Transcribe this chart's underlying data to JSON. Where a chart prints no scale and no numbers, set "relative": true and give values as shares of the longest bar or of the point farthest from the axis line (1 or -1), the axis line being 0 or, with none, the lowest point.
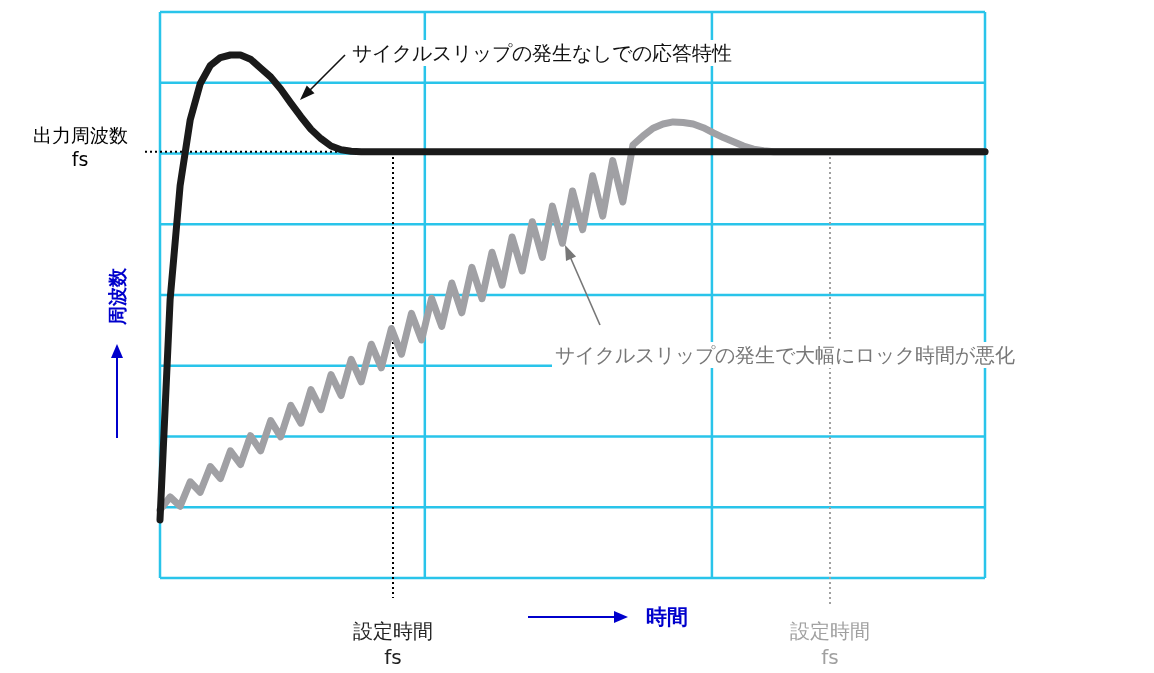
{
  "chart_data": {
    "type": "line",
    "relative": true,
    "xlabel": "時間",
    "ylabel": "周波数",
    "grid": true,
    "line_style": "solid",
    "categories": [
      null,
      null,
      null,
      null,
      null,
      null,
      null,
      null,
      null,
      null,
      null,
      null,
      null,
      null,
      null,
      null,
      null,
      null,
      null,
      null,
      null,
      null,
      null,
      null,
      null,
      null,
      null,
      null,
      null,
      null,
      null,
      null,
      null,
      null,
      null,
      null,
      null,
      null,
      null,
      null,
      null,
      null,
      null,
      null,
      null,
      null,
      null,
      null,
      null,
      null,
      null,
      null,
      null,
      null,
      null,
      null,
      null,
      null,
      null,
      null,
      null,
      null,
      null,
      null,
      null,
      null,
      null,
      null,
      null,
      null,
      null,
      null,
      null,
      null,
      null,
      null,
      null,
      null,
      null,
      null,
      null,
      null,
      null
    ],
    "series": [
      {
        "color": "#1a1a1a",
        "values": [
          0.111,
          0.532,
          0.75,
          0.876,
          0.945,
          0.98,
          0.995,
          1,
          1,
          0.992,
          0.975,
          0.958,
          0.935,
          0.908,
          0.882,
          0.858,
          0.84,
          0.826,
          0.819,
          0.816,
          0.815,
          0.815,
          0.815,
          0.815,
          0.815,
          0.815,
          0.815,
          0.815,
          0.815,
          0.815,
          0.815,
          0.815,
          0.815,
          0.815,
          0.815,
          0.815,
          0.815,
          0.815,
          0.815,
          0.815,
          0.815,
          0.815,
          0.815,
          0.815,
          0.815,
          0.815,
          0.815,
          0.815,
          0.815,
          0.815,
          0.815,
          0.815,
          0.815,
          0.815,
          0.815,
          0.815,
          0.815,
          0.815,
          0.815,
          0.815,
          0.815,
          0.815,
          0.815,
          0.815,
          0.815,
          0.815,
          0.815,
          0.815,
          0.815,
          0.815,
          0.815,
          0.815,
          0.815,
          0.815,
          0.815,
          0.815,
          0.815,
          0.815,
          0.815,
          0.815,
          0.815,
          0.815,
          0.815
        ]
      },
      {
        "color": "#a0a0a4",
        "values": [
          0.13,
          0.155,
          0.137,
          0.184,
          0.164,
          0.213,
          0.19,
          0.243,
          0.217,
          0.272,
          0.243,
          0.301,
          0.27,
          0.33,
          0.296,
          0.36,
          0.322,
          0.389,
          0.349,
          0.418,
          0.375,
          0.447,
          0.402,
          0.477,
          0.428,
          0.506,
          0.455,
          0.535,
          0.481,
          0.564,
          0.507,
          0.594,
          0.534,
          0.623,
          0.56,
          0.652,
          0.587,
          0.681,
          0.613,
          0.711,
          0.64,
          0.74,
          0.666,
          0.769,
          0.692,
          0.798,
          0.719,
          0.828,
          0.845,
          0.86,
          0.868,
          0.872,
          0.871,
          0.868,
          0.861,
          0.851,
          0.842,
          0.834,
          0.826,
          0.82,
          0.817,
          0.815,
          0.815,
          0.815,
          0.815,
          0.815,
          0.815,
          0.815,
          0.815,
          0.815,
          0.815,
          0.815,
          0.815,
          0.815,
          0.815,
          0.815,
          0.815,
          0.815,
          0.815,
          0.815,
          0.815,
          0.815,
          0.815
        ]
      }
    ],
    "ref_lines": [
      {
        "axis": "y",
        "value": 0.815,
        "label": "出力周波数\nfs",
        "color": "#000000",
        "line_style": "dotted"
      },
      {
        "axis": "x",
        "label": "設定時間\nfs",
        "color": "#000000",
        "line_style": "dotted"
      },
      {
        "axis": "x",
        "label": "設定時間\nfs",
        "color": "#a0a0a0",
        "line_style": "dotted"
      }
    ],
    "annotations": [
      "サイクルスリップの発生なしでの応答特性",
      "サイクルスリップの発生で大幅にロック時間が悪化"
    ]
  }
}
